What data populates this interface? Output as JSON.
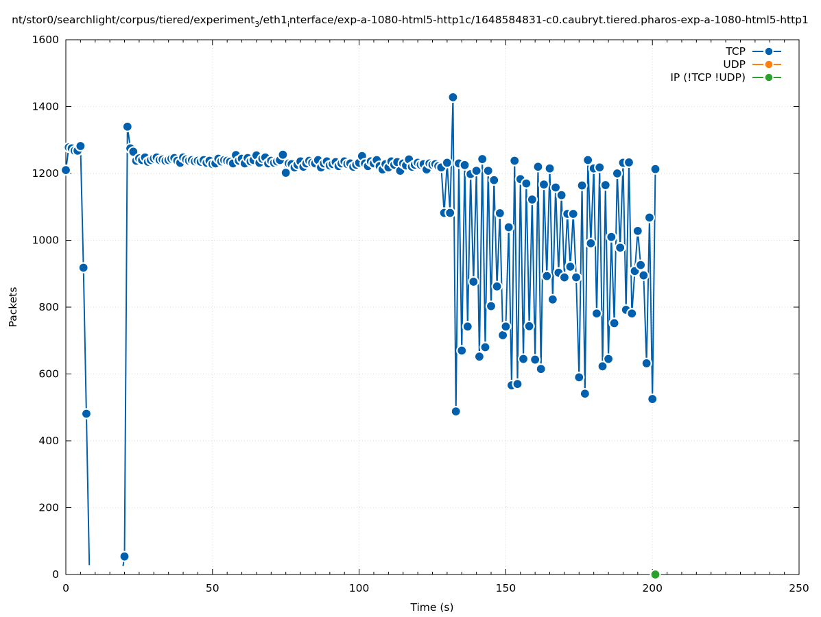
{
  "chart_data": {
    "type": "line",
    "title_prefix": "nt/stor0/searchlight/corpus/tiered/experiment",
    "title_sub1": "3",
    "title_mid": "/eth1",
    "title_sub2": "i",
    "title_suffix": "nterface/exp-a-1080-html5-http1c/1648584831-c0.caubryt.tiered.pharos-exp-a-1080-html5-http1",
    "xlabel": "Time (s)",
    "ylabel": "Packets",
    "xlim": [
      0,
      250
    ],
    "ylim": [
      0,
      1600
    ],
    "xticks": [
      "0",
      "50",
      "100",
      "150",
      "200",
      "250"
    ],
    "yticks": [
      "0",
      "200",
      "400",
      "600",
      "800",
      "1000",
      "1200",
      "1400",
      "1600"
    ],
    "grid": true,
    "legend_position": "top-right",
    "series": [
      {
        "name": "TCP",
        "color": "#0060ad",
        "segments": [
          [
            [
              0,
              1210
            ],
            [
              1,
              1278
            ],
            [
              2,
              1275
            ],
            [
              3,
              1268
            ],
            [
              4,
              1268
            ],
            [
              5,
              1282
            ],
            [
              6,
              918
            ],
            [
              7,
              481
            ],
            [
              8,
              28
            ]
          ],
          [
            [
              19.5,
              25
            ],
            [
              20,
              54
            ],
            [
              21,
              1340
            ],
            [
              22,
              1275
            ],
            [
              23,
              1265
            ],
            [
              24,
              1238
            ],
            [
              25,
              1245
            ],
            [
              26,
              1240
            ],
            [
              27,
              1248
            ],
            [
              28,
              1235
            ],
            [
              29,
              1240
            ],
            [
              30,
              1245
            ],
            [
              31,
              1248
            ],
            [
              32,
              1240
            ],
            [
              33,
              1242
            ],
            [
              34,
              1238
            ],
            [
              35,
              1240
            ],
            [
              36,
              1244
            ],
            [
              37,
              1246
            ],
            [
              38,
              1238
            ],
            [
              39,
              1232
            ],
            [
              40,
              1248
            ],
            [
              41,
              1242
            ],
            [
              42,
              1238
            ],
            [
              43,
              1240
            ],
            [
              44,
              1236
            ],
            [
              45,
              1238
            ],
            [
              46,
              1235
            ],
            [
              47,
              1240
            ],
            [
              48,
              1232
            ],
            [
              49,
              1238
            ],
            [
              50,
              1228
            ],
            [
              51,
              1230
            ],
            [
              52,
              1244
            ],
            [
              53,
              1236
            ],
            [
              54,
              1240
            ],
            [
              55,
              1238
            ],
            [
              56,
              1235
            ],
            [
              57,
              1230
            ],
            [
              58,
              1255
            ],
            [
              59,
              1238
            ],
            [
              60,
              1244
            ],
            [
              61,
              1230
            ],
            [
              62,
              1246
            ],
            [
              63,
              1236
            ],
            [
              64,
              1240
            ],
            [
              65,
              1254
            ],
            [
              66,
              1232
            ],
            [
              67,
              1244
            ],
            [
              68,
              1248
            ],
            [
              69,
              1230
            ],
            [
              70,
              1238
            ],
            [
              71,
              1232
            ],
            [
              72,
              1236
            ],
            [
              73,
              1240
            ],
            [
              74,
              1256
            ],
            [
              75,
              1202
            ],
            [
              76,
              1230
            ],
            [
              77,
              1228
            ],
            [
              78,
              1218
            ],
            [
              79,
              1226
            ],
            [
              80,
              1236
            ],
            [
              81,
              1220
            ],
            [
              82,
              1230
            ],
            [
              83,
              1238
            ],
            [
              84,
              1232
            ],
            [
              85,
              1230
            ],
            [
              86,
              1240
            ],
            [
              87,
              1218
            ],
            [
              88,
              1230
            ],
            [
              89,
              1236
            ],
            [
              90,
              1224
            ],
            [
              91,
              1228
            ],
            [
              92,
              1234
            ],
            [
              93,
              1222
            ],
            [
              94,
              1230
            ],
            [
              95,
              1236
            ],
            [
              96,
              1228
            ],
            [
              97,
              1230
            ],
            [
              98,
              1220
            ],
            [
              99,
              1226
            ],
            [
              100,
              1232
            ],
            [
              101,
              1252
            ],
            [
              102,
              1230
            ],
            [
              103,
              1222
            ],
            [
              104,
              1236
            ],
            [
              105,
              1230
            ],
            [
              106,
              1240
            ],
            [
              107,
              1222
            ],
            [
              108,
              1212
            ],
            [
              109,
              1228
            ],
            [
              110,
              1218
            ],
            [
              111,
              1236
            ],
            [
              112,
              1226
            ],
            [
              113,
              1234
            ],
            [
              114,
              1208
            ],
            [
              115,
              1230
            ],
            [
              116,
              1224
            ],
            [
              117,
              1242
            ],
            [
              118,
              1220
            ],
            [
              119,
              1226
            ],
            [
              120,
              1232
            ],
            [
              121,
              1226
            ],
            [
              122,
              1228
            ],
            [
              123,
              1212
            ],
            [
              124,
              1230
            ],
            [
              125,
              1226
            ],
            [
              126,
              1228
            ],
            [
              127,
              1222
            ],
            [
              128,
              1218
            ],
            [
              129,
              1082
            ],
            [
              130,
              1232
            ],
            [
              131,
              1082
            ],
            [
              132,
              1428
            ],
            [
              133,
              488
            ],
            [
              134,
              1230
            ],
            [
              135,
              670
            ],
            [
              136,
              1225
            ],
            [
              137,
              742
            ],
            [
              138,
              1198
            ],
            [
              139,
              876
            ],
            [
              140,
              1208
            ],
            [
              141,
              652
            ],
            [
              142,
              1243
            ],
            [
              143,
              680
            ],
            [
              144,
              1208
            ],
            [
              145,
              803
            ],
            [
              146,
              1180
            ],
            [
              147,
              862
            ],
            [
              148,
              1081
            ],
            [
              149,
              716
            ],
            [
              150,
              742
            ],
            [
              151,
              1039
            ],
            [
              152,
              566
            ],
            [
              153,
              1238
            ],
            [
              154,
              570
            ],
            [
              155,
              1183
            ],
            [
              156,
              645
            ],
            [
              157,
              1170
            ],
            [
              158,
              743
            ],
            [
              159,
              1122
            ],
            [
              160,
              643
            ],
            [
              161,
              1220
            ],
            [
              162,
              615
            ],
            [
              163,
              1167
            ],
            [
              164,
              893
            ],
            [
              165,
              1215
            ],
            [
              166,
              823
            ],
            [
              167,
              1158
            ],
            [
              168,
              903
            ],
            [
              169,
              1135
            ],
            [
              170,
              889
            ],
            [
              171,
              1079
            ],
            [
              172,
              921
            ],
            [
              173,
              1079
            ],
            [
              174,
              889
            ],
            [
              175,
              590
            ],
            [
              176,
              1164
            ],
            [
              177,
              541
            ],
            [
              178,
              1240
            ],
            [
              179,
              991
            ],
            [
              180,
              1215
            ],
            [
              181,
              781
            ],
            [
              182,
              1218
            ],
            [
              183,
              623
            ],
            [
              184,
              1165
            ],
            [
              185,
              645
            ],
            [
              186,
              1010
            ],
            [
              187,
              752
            ],
            [
              188,
              1200
            ],
            [
              189,
              978
            ],
            [
              190,
              1232
            ],
            [
              191,
              792
            ],
            [
              192,
              1233
            ],
            [
              193,
              781
            ],
            [
              194,
              908
            ],
            [
              195,
              1028
            ],
            [
              196,
              926
            ],
            [
              197,
              895
            ],
            [
              198,
              632
            ],
            [
              199,
              1068
            ],
            [
              200,
              525
            ],
            [
              201,
              1213
            ]
          ]
        ]
      },
      {
        "name": "UDP",
        "color": "#ff7f0e",
        "segments": []
      },
      {
        "name": "IP (!TCP  !UDP)",
        "color": "#2ca02c",
        "segments": [
          [
            [
              201,
              0
            ]
          ]
        ]
      }
    ]
  }
}
